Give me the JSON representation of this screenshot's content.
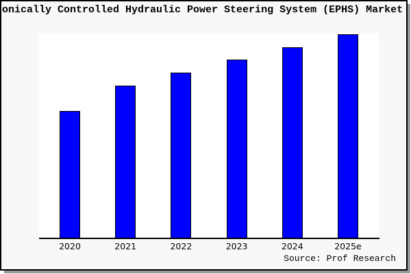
{
  "chart_data": {
    "type": "bar",
    "title": "ronically Controlled Hydraulic Power Steering System (EPHS) Market",
    "categories": [
      "2020",
      "2021",
      "2022",
      "2023",
      "2024",
      "2025e"
    ],
    "values": [
      62.4,
      74.8,
      81.2,
      87.6,
      93.6,
      100
    ],
    "value_scale": "relative bar height, tallest bar (2025e) = 100; y-axis has no ticks or labels",
    "xlabel": "",
    "ylabel": "",
    "ylim": [
      0,
      100.7
    ],
    "grid": false,
    "legend": null,
    "annotation": "Source: Prof Research",
    "bar_fill_color": "#0000ff",
    "bar_edge_color": "#000000",
    "figure_bg_color": "#f8f8f8",
    "plot_bg_color": "#ffffff"
  }
}
